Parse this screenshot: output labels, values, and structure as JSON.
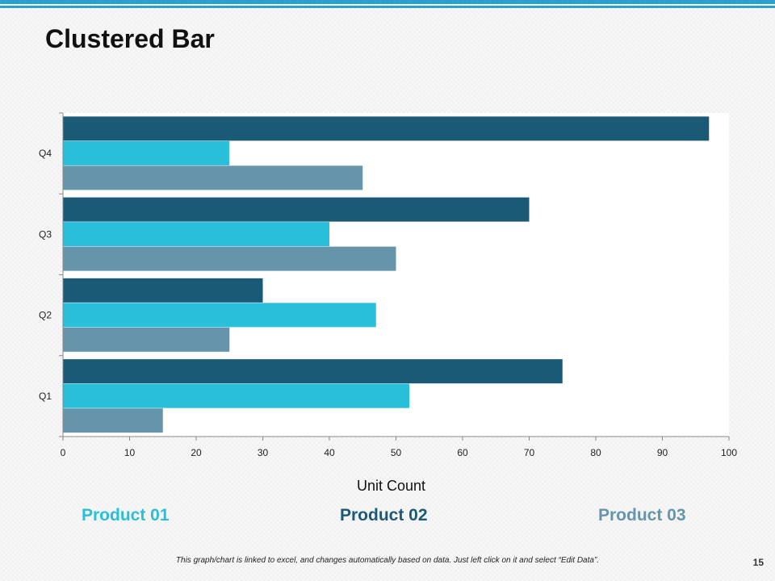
{
  "slide": {
    "title": "Clustered Bar",
    "footer_note": "This graph/chart is linked to excel, and changes automatically based on data. Just left click on it and select “Edit Data”.",
    "page_number": "15",
    "accent_color": "#2a9fd0"
  },
  "chart_data": {
    "type": "bar",
    "orientation": "horizontal",
    "title": "",
    "categories": [
      "Q1",
      "Q2",
      "Q3",
      "Q4"
    ],
    "series": [
      {
        "name": "Product 02",
        "color": "#1b5a77",
        "values": [
          75,
          30,
          70,
          97
        ]
      },
      {
        "name": "Product 01",
        "color": "#27bfd9",
        "values": [
          52,
          47,
          40,
          25
        ]
      },
      {
        "name": "Product 03",
        "color": "#6695ab",
        "values": [
          15,
          25,
          50,
          45
        ]
      }
    ],
    "xlabel": "Unit Count",
    "ylabel": "",
    "xlim": [
      0,
      100
    ],
    "xticks": [
      "0",
      "10",
      "20",
      "30",
      "40",
      "50",
      "60",
      "70",
      "80",
      "90",
      "100"
    ],
    "grid": false,
    "legend": [
      {
        "label": "Product 01",
        "color": "#27bfd9"
      },
      {
        "label": "Product 02",
        "color": "#1b5a77"
      },
      {
        "label": "Product 03",
        "color": "#6695ab"
      }
    ],
    "legend_position": "bottom"
  }
}
